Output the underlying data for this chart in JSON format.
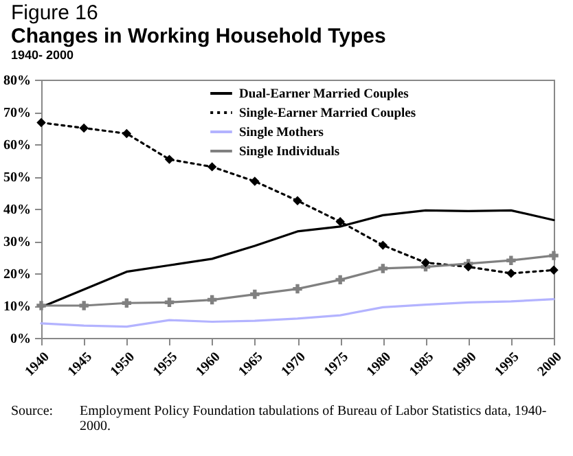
{
  "chart_data": {
    "type": "line",
    "title": "Changes in Working Household Types",
    "subtitle": "1940- 2000",
    "annotations": [
      "Figure 16",
      "Source:\tEmployment Policy Foundation tabulations of Bureau of Labor Statistics data, 1940-2000."
    ],
    "categories": [
      "1940",
      "1945",
      "1950",
      "1955",
      "1960",
      "1965",
      "1970",
      "1975",
      "1980",
      "1985",
      "1990",
      "1995",
      "2000"
    ],
    "series": [
      {
        "name": "Dual-Earner Married Couples",
        "color": "#000000",
        "line_style": "solid",
        "marker": "none",
        "values": [
          9.5,
          15,
          20.5,
          22.5,
          24.5,
          28.5,
          33,
          34.5,
          38,
          39.5,
          39.3,
          39.5,
          36.5
        ]
      },
      {
        "name": "Single-Earner Married Couples",
        "color": "#000000",
        "line_style": "dotted",
        "marker": "diamond",
        "values": [
          66.7,
          65,
          63.3,
          55.3,
          53,
          48.5,
          42.5,
          36,
          28.7,
          23.3,
          22,
          20,
          21
        ]
      },
      {
        "name": "Single Mothers",
        "color": "#b3b3ff",
        "line_style": "solid",
        "marker": "none",
        "values": [
          4.5,
          3.8,
          3.5,
          5.5,
          5,
          5.3,
          6,
          7,
          9.5,
          10.3,
          11,
          11.3,
          12
        ]
      },
      {
        "name": "Single Individuals",
        "color": "#808080",
        "line_style": "solid",
        "marker": "cross",
        "values": [
          10,
          10,
          10.8,
          11,
          11.8,
          13.5,
          15.2,
          18,
          21.5,
          22,
          23,
          24,
          25.5
        ]
      }
    ],
    "ylim": [
      0,
      80
    ],
    "yticks": [
      {
        "value": 0,
        "label": "0%"
      },
      {
        "value": 10,
        "label": "10%"
      },
      {
        "value": 20,
        "label": "20%"
      },
      {
        "value": 30,
        "label": "30%"
      },
      {
        "value": 40,
        "label": "40%"
      },
      {
        "value": 50,
        "label": "50%"
      },
      {
        "value": 60,
        "label": "60%"
      },
      {
        "value": 70,
        "label": "70%"
      },
      {
        "value": 80,
        "label": "80%"
      }
    ],
    "grid": false,
    "legend": "top"
  }
}
